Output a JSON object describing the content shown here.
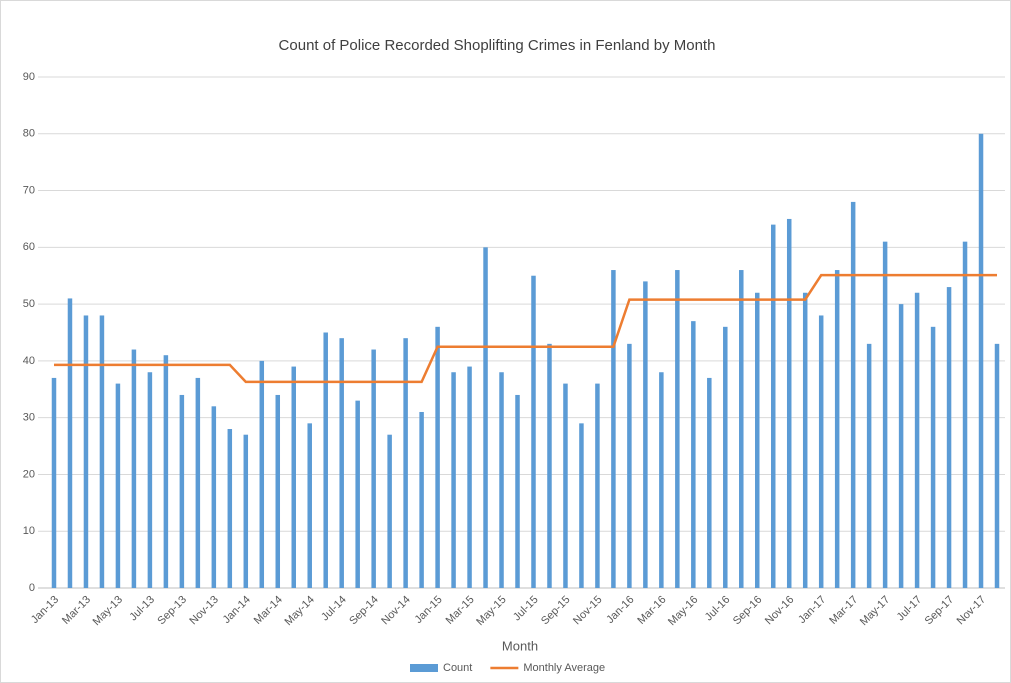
{
  "chart_data": {
    "type": "bar",
    "title": "Count of Police Recorded Shoplifting Crimes in Fenland by Month",
    "xlabel": "Month",
    "categories": [
      "Jan-13",
      null,
      "Mar-13",
      null,
      "May-13",
      null,
      "Jul-13",
      null,
      "Sep-13",
      null,
      "Nov-13",
      null,
      "Jan-14",
      null,
      "Mar-14",
      null,
      "May-14",
      null,
      "Jul-14",
      null,
      "Sep-14",
      null,
      "Nov-14",
      null,
      "Jan-15",
      null,
      "Mar-15",
      null,
      "May-15",
      null,
      "Jul-15",
      null,
      "Sep-15",
      null,
      "Nov-15",
      null,
      "Jan-16",
      null,
      "Mar-16",
      null,
      "May-16",
      null,
      "Jul-16",
      null,
      "Sep-16",
      null,
      "Nov-16",
      null,
      "Jan-17",
      null,
      "Mar-17",
      null,
      "May-17",
      null,
      "Jul-17",
      null,
      "Sep-17",
      null,
      "Nov-17",
      null
    ],
    "series": [
      {
        "name": "Count",
        "type": "bar",
        "color": "#5b9bd5",
        "values": [
          37,
          51,
          48,
          48,
          36,
          42,
          38,
          41,
          34,
          37,
          32,
          28,
          27,
          40,
          34,
          39,
          29,
          45,
          44,
          33,
          42,
          27,
          44,
          31,
          46,
          38,
          39,
          60,
          38,
          34,
          55,
          43,
          36,
          29,
          36,
          56,
          43,
          54,
          38,
          56,
          47,
          37,
          46,
          56,
          52,
          64,
          65,
          52,
          48,
          56,
          68,
          43,
          61,
          50,
          52,
          46,
          53,
          61,
          80,
          43
        ]
      },
      {
        "name": "Monthly Average",
        "type": "line",
        "color": "#ed7d31",
        "values": [
          39.3,
          39.3,
          39.3,
          39.3,
          39.3,
          39.3,
          39.3,
          39.3,
          39.3,
          39.3,
          39.3,
          39.3,
          36.3,
          36.3,
          36.3,
          36.3,
          36.3,
          36.3,
          36.3,
          36.3,
          36.3,
          36.3,
          36.3,
          36.3,
          42.5,
          42.5,
          42.5,
          42.5,
          42.5,
          42.5,
          42.5,
          42.5,
          42.5,
          42.5,
          42.5,
          42.5,
          50.8,
          50.8,
          50.8,
          50.8,
          50.8,
          50.8,
          50.8,
          50.8,
          50.8,
          50.8,
          50.8,
          50.8,
          55.1,
          55.1,
          55.1,
          55.1,
          55.1,
          55.1,
          55.1,
          55.1,
          55.1,
          55.1,
          55.1,
          55.1
        ]
      }
    ],
    "ylim": [
      0,
      90
    ],
    "yticks": [
      0,
      10,
      20,
      30,
      40,
      50,
      60,
      70,
      80,
      90
    ],
    "grid": true,
    "legend": "bottom"
  }
}
